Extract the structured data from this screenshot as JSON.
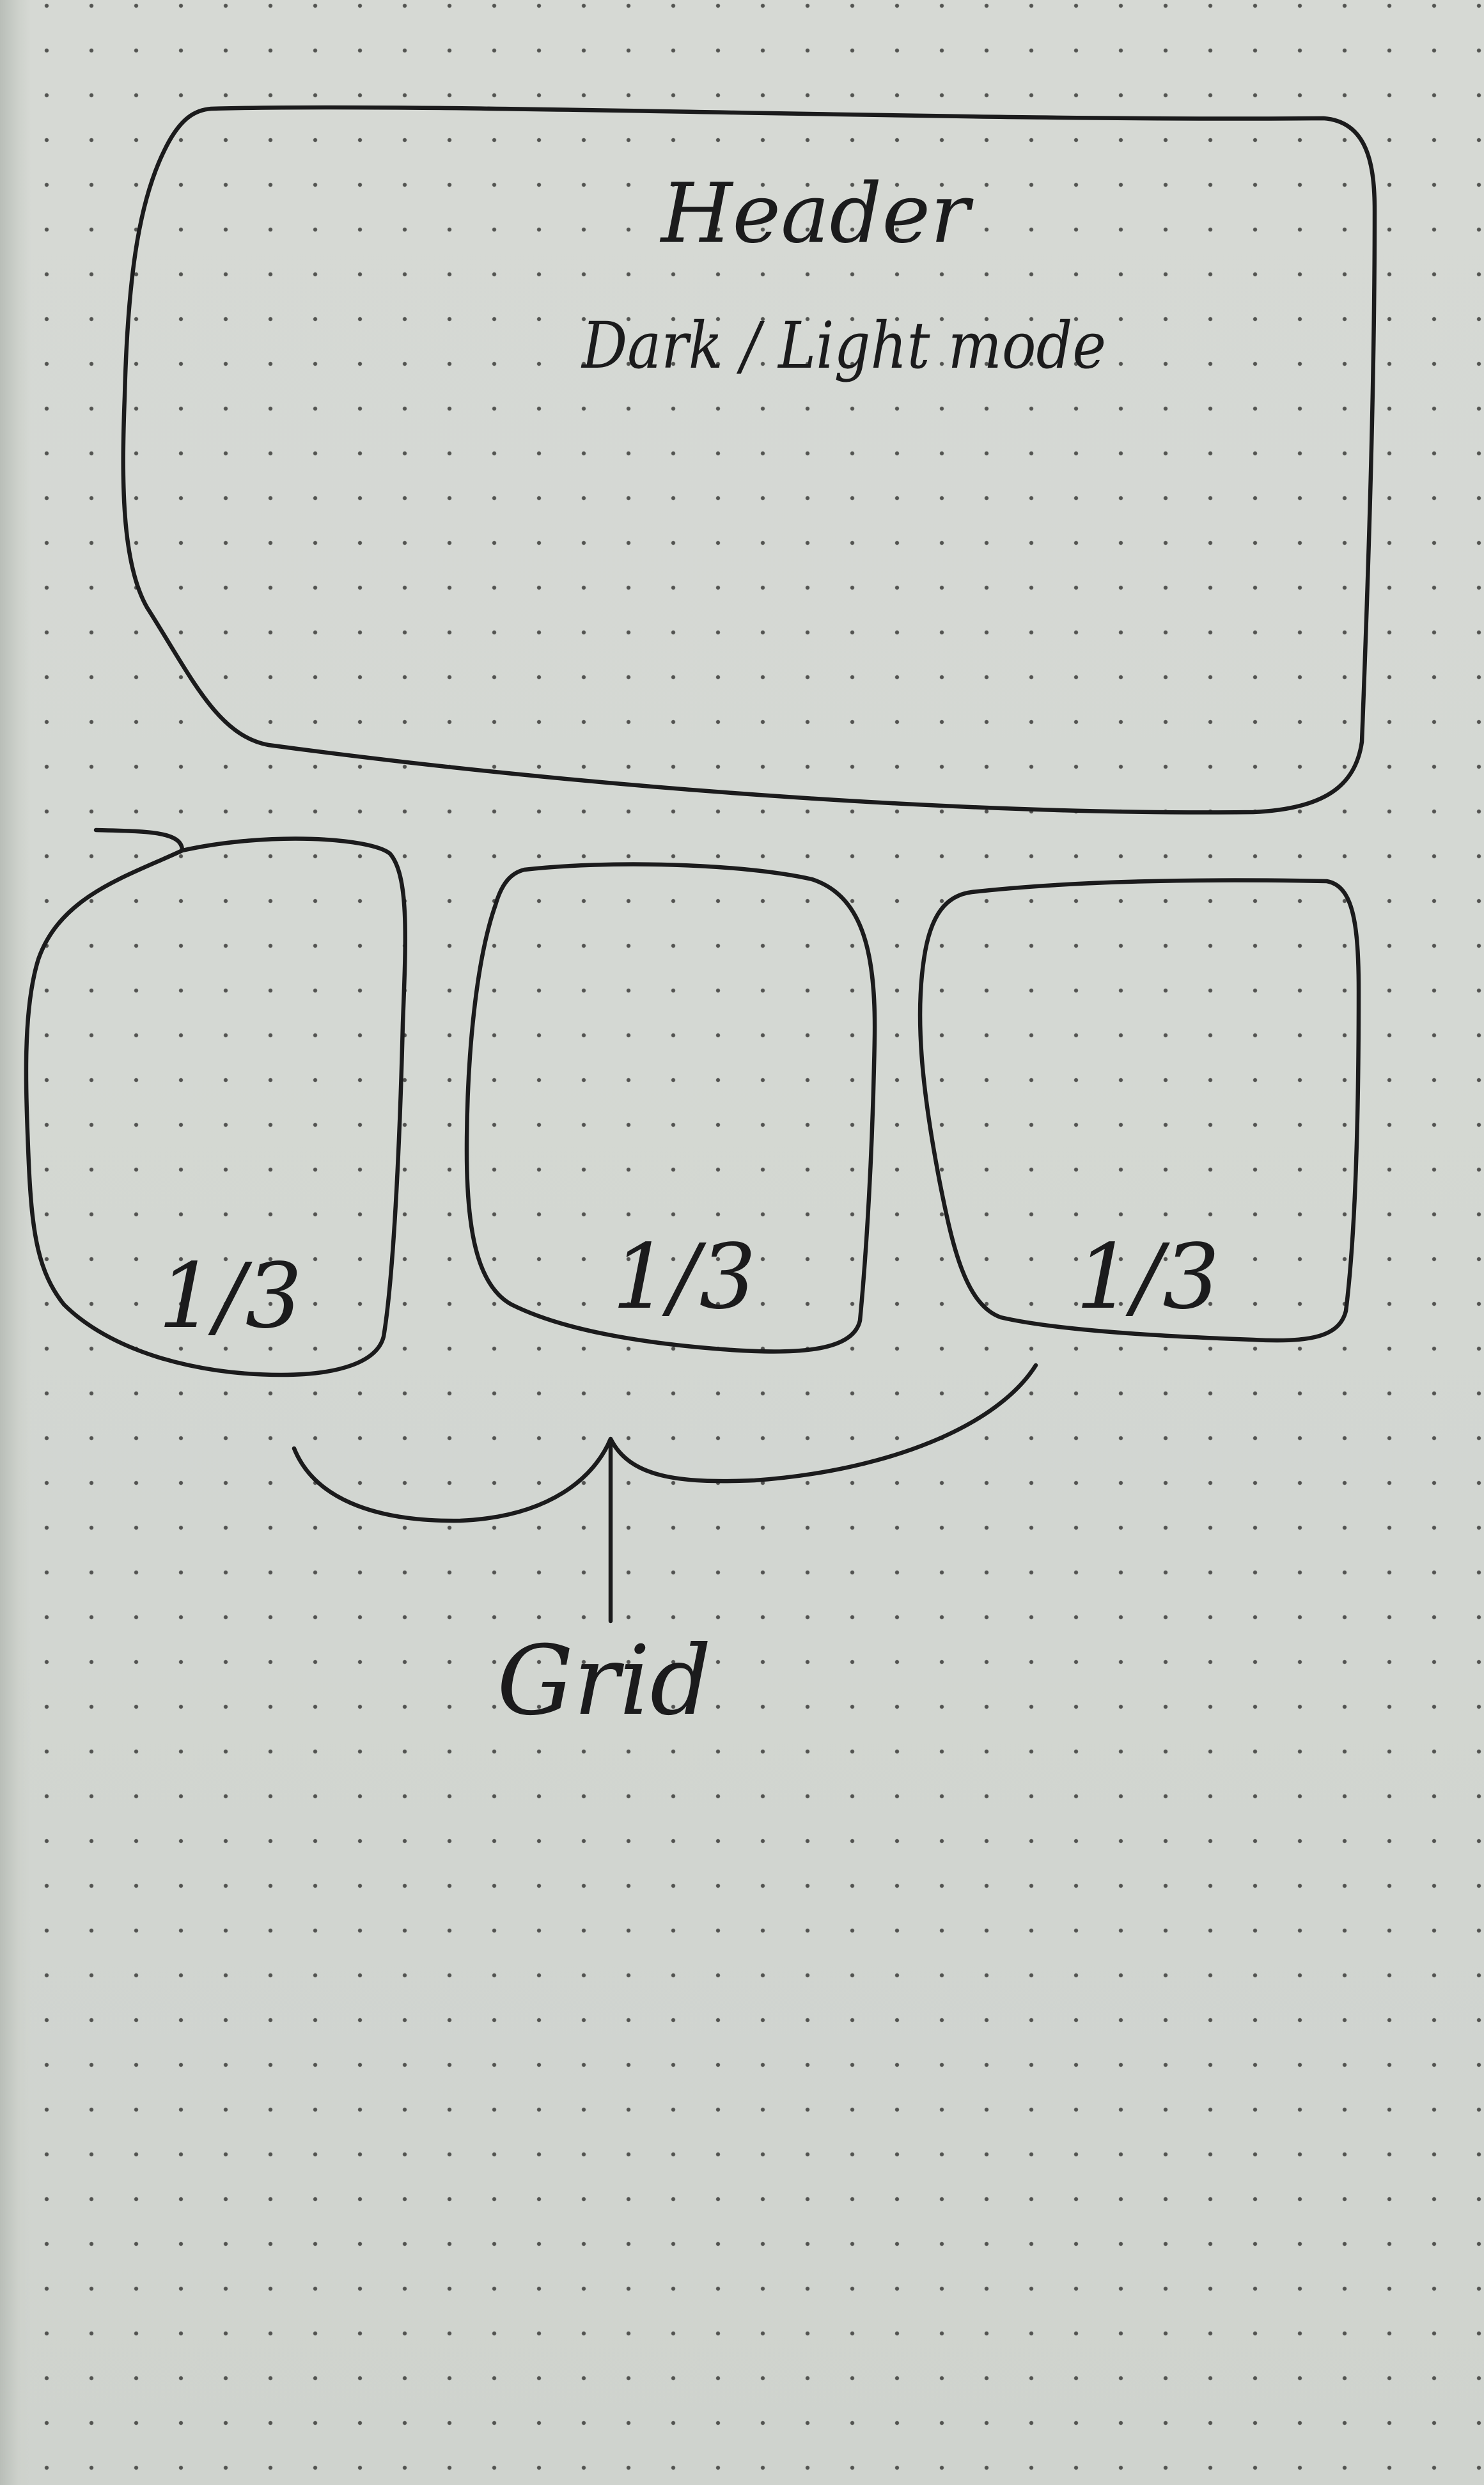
{
  "header_box": {
    "title": "Header",
    "subtitle": "Dark / Light mode"
  },
  "grid_boxes": [
    {
      "label": "1/3"
    },
    {
      "label": "1/3"
    },
    {
      "label": "1/3"
    }
  ],
  "brace_label": "Grid",
  "colors": {
    "paper": "#d5d8d3",
    "dot": "#3c3c3a",
    "ink": "#1b1b1c"
  }
}
